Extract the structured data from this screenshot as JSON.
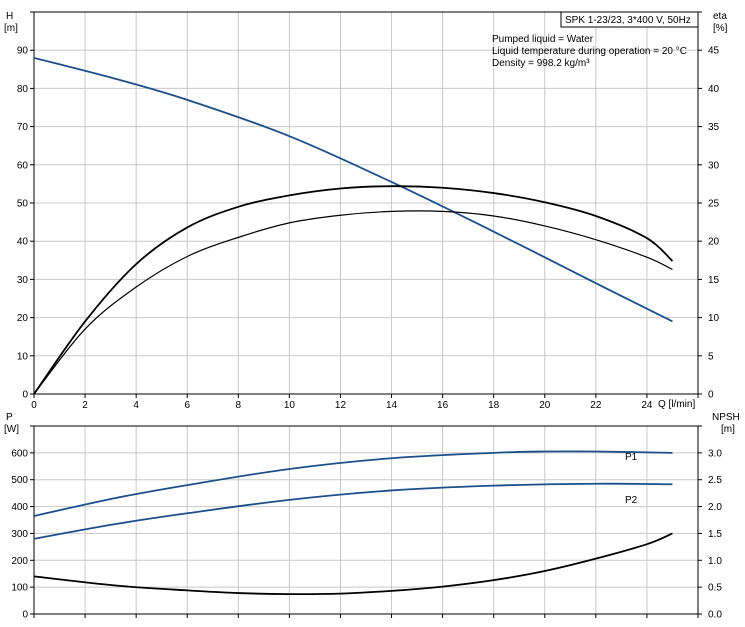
{
  "chart_data": [
    {
      "type": "line",
      "title": "SPK 1-23/23, 3*400 V, 50Hz",
      "notes": [
        "Pumped liquid = Water",
        "Liquid temperature during operation = 20 °C",
        "Density = 998.2 kg/m³"
      ],
      "xlabel": "Q [l/min]",
      "xlim": [
        0,
        26
      ],
      "xticks": [
        0,
        2,
        4,
        6,
        8,
        10,
        12,
        14,
        16,
        18,
        20,
        22,
        24
      ],
      "ylabel_left": [
        "H",
        "[m]"
      ],
      "ylim_left": [
        0,
        100
      ],
      "yticks_left": [
        0,
        10,
        20,
        30,
        40,
        50,
        60,
        70,
        80,
        90
      ],
      "ylabel_right": [
        "eta",
        "[%]"
      ],
      "ylim_right": [
        0,
        50
      ],
      "yticks_right": [
        0,
        5,
        10,
        15,
        20,
        25,
        30,
        35,
        40,
        45
      ],
      "grid": true,
      "series": [
        {
          "axis": "left",
          "color": "#1c4f8a",
          "x": [
            0,
            3.2,
            6,
            10,
            14,
            18,
            22,
            25
          ],
          "values": [
            88,
            82.5,
            77,
            67.5,
            55.5,
            42.5,
            29,
            19
          ]
        },
        {
          "axis": "right",
          "color": "#000000",
          "x": [
            0,
            2,
            4,
            6,
            8,
            10,
            12,
            14,
            16,
            18,
            20,
            22,
            24,
            25
          ],
          "values": [
            0,
            8.5,
            14,
            18,
            20.5,
            22.4,
            23.4,
            23.9,
            23.9,
            23.3,
            22,
            20.2,
            17.9,
            16.3
          ]
        },
        {
          "axis": "right",
          "color": "#000000",
          "x": [
            0,
            2,
            4,
            6,
            8,
            10,
            12,
            14,
            16,
            18,
            20,
            22,
            24,
            25
          ],
          "values": [
            0,
            9.5,
            17,
            21.8,
            24.5,
            26,
            26.9,
            27.2,
            27,
            26.3,
            25.1,
            23.3,
            20.4,
            17.4
          ]
        }
      ]
    },
    {
      "type": "line",
      "xlim": [
        0,
        26
      ],
      "ylabel_left": [
        "P",
        "[W]"
      ],
      "ylim_left": [
        0,
        700
      ],
      "yticks_left": [
        0,
        100,
        200,
        300,
        400,
        500,
        600
      ],
      "ylabel_right": [
        "NPSH",
        "[m]"
      ],
      "ylim_right": [
        0,
        3.5
      ],
      "yticks_right": [
        "0.0",
        "0.5",
        "1.0",
        "1.5",
        "2.0",
        "2.5",
        "3.0"
      ],
      "grid": true,
      "series": [
        {
          "name": "P1",
          "axis": "left",
          "color": "#1c4f8a",
          "x": [
            0,
            3.2,
            6,
            10,
            14,
            18,
            20,
            22,
            25
          ],
          "values": [
            365,
            432,
            480,
            540,
            580,
            600,
            605,
            605,
            600
          ]
        },
        {
          "name": "P2",
          "axis": "left",
          "color": "#1c4f8a",
          "x": [
            0,
            3.2,
            6,
            10,
            14,
            18,
            22,
            25
          ],
          "values": [
            280,
            335,
            375,
            425,
            460,
            478,
            485,
            483
          ]
        },
        {
          "axis": "right",
          "color": "#000000",
          "x": [
            0,
            3.2,
            6,
            8,
            10,
            12,
            14,
            16,
            18,
            20,
            22,
            24,
            25
          ],
          "values": [
            0.7,
            0.53,
            0.44,
            0.39,
            0.37,
            0.38,
            0.43,
            0.51,
            0.63,
            0.8,
            1.03,
            1.3,
            1.5
          ]
        }
      ]
    }
  ]
}
